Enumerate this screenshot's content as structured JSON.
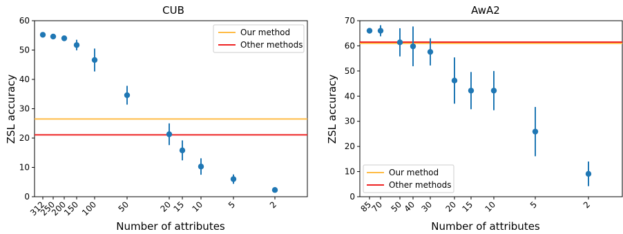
{
  "colors": {
    "points": "#1f77b4",
    "our_method": "#ffbb44",
    "other_methods": "#ee2222"
  },
  "chart_data": [
    {
      "type": "scatter",
      "title": "CUB",
      "xlabel": "Number of attributes",
      "ylabel": "ZSL accuracy",
      "ylim": [
        0,
        60
      ],
      "yticks": [
        0,
        10,
        20,
        30,
        40,
        50,
        60
      ],
      "xticks": [
        "312",
        "250",
        "200",
        "150",
        "100",
        "50",
        "20",
        "15",
        "10",
        "5",
        "2"
      ],
      "points": [
        {
          "x": "312",
          "y": 55.2,
          "err": 0
        },
        {
          "x": "250",
          "y": 54.6,
          "err": 0
        },
        {
          "x": "200",
          "y": 54.0,
          "err": 0
        },
        {
          "x": "150",
          "y": 51.7,
          "err": 1.8
        },
        {
          "x": "100",
          "y": 46.6,
          "err": 3.9
        },
        {
          "x": "50",
          "y": 34.6,
          "err": 3.2
        },
        {
          "x": "20",
          "y": 21.3,
          "err": 3.7
        },
        {
          "x": "15",
          "y": 15.8,
          "err": 3.4
        },
        {
          "x": "10",
          "y": 10.3,
          "err": 2.8
        },
        {
          "x": "5",
          "y": 6.0,
          "err": 1.6
        },
        {
          "x": "2",
          "y": 2.3,
          "err": 0
        }
      ],
      "hlines": [
        {
          "name": "Our method",
          "y": 26.5
        },
        {
          "name": "Other methods",
          "y": 21.1
        }
      ],
      "legend": "top-right"
    },
    {
      "type": "scatter",
      "title": "AwA2",
      "xlabel": "Number of attributes",
      "ylabel": "ZSL accuracy",
      "ylim": [
        0,
        70
      ],
      "yticks": [
        0,
        10,
        20,
        30,
        40,
        50,
        60,
        70
      ],
      "xticks": [
        "85",
        "70",
        "50",
        "40",
        "30",
        "20",
        "15",
        "10",
        "5",
        "2"
      ],
      "points": [
        {
          "x": "85",
          "y": 66.0,
          "err": 0
        },
        {
          "x": "70",
          "y": 66.0,
          "err": 2.2
        },
        {
          "x": "50",
          "y": 61.4,
          "err": 5.6
        },
        {
          "x": "40",
          "y": 59.8,
          "err": 7.9
        },
        {
          "x": "30",
          "y": 57.6,
          "err": 5.4
        },
        {
          "x": "20",
          "y": 46.2,
          "err": 9.2
        },
        {
          "x": "15",
          "y": 42.2,
          "err": 7.4
        },
        {
          "x": "10",
          "y": 42.2,
          "err": 7.8
        },
        {
          "x": "5",
          "y": 25.9,
          "err": 9.8
        },
        {
          "x": "2",
          "y": 9.1,
          "err": 4.9
        }
      ],
      "hlines": [
        {
          "name": "Our method",
          "y": 61.0
        },
        {
          "name": "Other methods",
          "y": 61.5
        }
      ],
      "legend": "bottom-left"
    }
  ]
}
